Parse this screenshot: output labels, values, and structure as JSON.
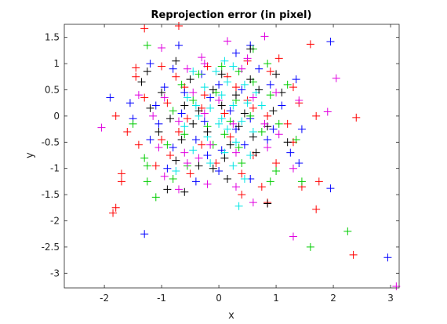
{
  "chart_data": {
    "type": "scatter",
    "title": "Reprojection error (in pixel)",
    "xlabel": "x",
    "ylabel": "y",
    "xlim": [
      -2.7,
      3.15
    ],
    "ylim": [
      -3.28,
      1.75
    ],
    "xticks": [
      "-2",
      "-1",
      "0",
      "1",
      "2",
      "3"
    ],
    "xtick_values": [
      -2,
      -1,
      0,
      1,
      2,
      3
    ],
    "yticks": [
      "1.5",
      "1",
      "0.5",
      "0",
      "-0.5",
      "-1",
      "-1.5",
      "-2",
      "-2.5",
      "-3"
    ],
    "ytick_values": [
      1.5,
      1,
      0.5,
      0,
      -0.5,
      -1,
      -1.5,
      -2,
      -2.5,
      -3
    ],
    "grid": false,
    "marker": "+",
    "series": [
      {
        "color": "#ff0000",
        "points": [
          [
            -1.3,
            1.67
          ],
          [
            -0.7,
            1.72
          ],
          [
            1.6,
            1.37
          ],
          [
            -1.8,
            0.0
          ],
          [
            -1.6,
            -0.3
          ],
          [
            -1.7,
            -1.1
          ],
          [
            -1.7,
            -1.25
          ],
          [
            -1.8,
            -1.75
          ],
          [
            -1.85,
            -1.85
          ],
          [
            -1.45,
            0.92
          ],
          [
            -1.45,
            0.75
          ],
          [
            -1.0,
            0.95
          ],
          [
            -0.75,
            0.75
          ],
          [
            -0.2,
            0.95
          ],
          [
            0.15,
            0.75
          ],
          [
            0.5,
            1.05
          ],
          [
            0.9,
            0.85
          ],
          [
            1.3,
            0.55
          ],
          [
            1.4,
            0.25
          ],
          [
            -1.3,
            0.35
          ],
          [
            -0.9,
            0.25
          ],
          [
            -0.6,
            0.55
          ],
          [
            -0.3,
            0.15
          ],
          [
            0.1,
            0.05
          ],
          [
            0.5,
            0.3
          ],
          [
            0.85,
            0.0
          ],
          [
            1.2,
            -0.15
          ],
          [
            1.7,
            0.0
          ],
          [
            2.4,
            -0.03
          ],
          [
            -1.4,
            -0.55
          ],
          [
            -1.0,
            -0.45
          ],
          [
            -0.7,
            -0.3
          ],
          [
            -0.3,
            -0.55
          ],
          [
            0.2,
            -0.4
          ],
          [
            0.6,
            -0.75
          ],
          [
            1.0,
            -0.9
          ],
          [
            1.3,
            -0.5
          ],
          [
            -1.1,
            -0.95
          ],
          [
            -0.5,
            -1.1
          ],
          [
            -0.05,
            -0.9
          ],
          [
            0.4,
            -1.1
          ],
          [
            0.75,
            -1.35
          ],
          [
            1.45,
            -1.35
          ],
          [
            1.75,
            -1.25
          ],
          [
            1.7,
            -1.78
          ],
          [
            0.4,
            -1.5
          ],
          [
            0.85,
            -1.65
          ],
          [
            2.35,
            -2.65
          ],
          [
            1.05,
            1.1
          ],
          [
            -0.25,
            0.4
          ],
          [
            0.3,
            0.55
          ],
          [
            -0.55,
            -0.05
          ],
          [
            0.6,
            0.15
          ],
          [
            -0.85,
            -0.75
          ]
        ]
      },
      {
        "color": "#0000ff",
        "points": [
          [
            -0.7,
            1.35
          ],
          [
            0.55,
            1.35
          ],
          [
            1.95,
            1.42
          ],
          [
            -1.2,
            1.0
          ],
          [
            -0.8,
            0.9
          ],
          [
            0.3,
            1.2
          ],
          [
            -1.9,
            0.35
          ],
          [
            -1.55,
            0.25
          ],
          [
            -1.1,
            0.2
          ],
          [
            -0.6,
            0.45
          ],
          [
            -0.15,
            0.35
          ],
          [
            0.4,
            0.5
          ],
          [
            0.9,
            0.6
          ],
          [
            1.35,
            0.7
          ],
          [
            -1.5,
            -0.05
          ],
          [
            -1.05,
            -0.15
          ],
          [
            -0.65,
            0.05
          ],
          [
            -0.25,
            -0.1
          ],
          [
            0.2,
            0.1
          ],
          [
            0.55,
            -0.05
          ],
          [
            0.95,
            -0.25
          ],
          [
            1.45,
            -0.25
          ],
          [
            -1.2,
            -0.45
          ],
          [
            -0.8,
            -0.6
          ],
          [
            -0.4,
            -0.45
          ],
          [
            0.05,
            -0.65
          ],
          [
            0.45,
            -0.55
          ],
          [
            0.85,
            -0.45
          ],
          [
            1.25,
            -0.7
          ],
          [
            1.4,
            -0.9
          ],
          [
            -0.9,
            -1.0
          ],
          [
            -0.4,
            -1.25
          ],
          [
            0.0,
            -1.05
          ],
          [
            0.55,
            -1.2
          ],
          [
            1.95,
            -1.38
          ],
          [
            -1.3,
            -2.25
          ],
          [
            2.95,
            -2.7
          ],
          [
            0.0,
            0.6
          ],
          [
            -0.3,
            0.8
          ],
          [
            0.7,
            0.9
          ],
          [
            -0.2,
            -0.75
          ],
          [
            0.3,
            -0.25
          ],
          [
            1.1,
            0.2
          ],
          [
            -0.95,
            0.55
          ]
        ]
      },
      {
        "color": "#00cc00",
        "points": [
          [
            -1.25,
            1.35
          ],
          [
            0.6,
            1.28
          ],
          [
            0.85,
            1.0
          ],
          [
            -1.5,
            -0.15
          ],
          [
            -1.3,
            -0.8
          ],
          [
            -1.25,
            -0.95
          ],
          [
            -1.25,
            -1.25
          ],
          [
            -1.1,
            -1.55
          ],
          [
            -0.8,
            -1.2
          ],
          [
            -0.55,
            -0.95
          ],
          [
            -0.9,
            -0.55
          ],
          [
            -0.6,
            -0.35
          ],
          [
            -0.2,
            -0.2
          ],
          [
            0.1,
            -0.35
          ],
          [
            0.35,
            -0.6
          ],
          [
            0.75,
            -0.3
          ],
          [
            1.05,
            -0.15
          ],
          [
            1.35,
            -0.45
          ],
          [
            -0.8,
            0.1
          ],
          [
            -0.45,
            0.3
          ],
          [
            -0.05,
            0.45
          ],
          [
            0.3,
            0.3
          ],
          [
            0.6,
            0.65
          ],
          [
            0.9,
            0.4
          ],
          [
            1.2,
            0.6
          ],
          [
            -0.35,
            0.8
          ],
          [
            0.05,
            0.95
          ],
          [
            0.35,
            0.85
          ],
          [
            0.9,
            -1.25
          ],
          [
            1.45,
            -1.25
          ],
          [
            1.6,
            -2.5
          ],
          [
            2.25,
            -2.2
          ],
          [
            0.4,
            -0.9
          ],
          [
            -0.1,
            -0.55
          ],
          [
            0.55,
            0.0
          ],
          [
            -0.65,
            0.6
          ],
          [
            0.2,
            -0.1
          ],
          [
            1.0,
            -1.05
          ]
        ]
      },
      {
        "color": "#00e5e5",
        "points": [
          [
            0.1,
            1.05
          ],
          [
            0.25,
            0.95
          ],
          [
            -0.45,
            0.85
          ],
          [
            0.15,
            0.65
          ],
          [
            -0.25,
            0.55
          ],
          [
            0.45,
            0.6
          ],
          [
            0.05,
            0.4
          ],
          [
            -0.55,
            0.35
          ],
          [
            0.5,
            0.25
          ],
          [
            -0.15,
            0.15
          ],
          [
            0.25,
            0.2
          ],
          [
            0.75,
            0.2
          ],
          [
            -0.35,
            0.0
          ],
          [
            0.05,
            -0.05
          ],
          [
            0.4,
            -0.1
          ],
          [
            -0.6,
            -0.2
          ],
          [
            0.15,
            -0.25
          ],
          [
            0.6,
            -0.3
          ],
          [
            -0.2,
            -0.4
          ],
          [
            0.3,
            -0.5
          ],
          [
            0.1,
            -0.7
          ],
          [
            -0.45,
            -0.65
          ],
          [
            0.55,
            -0.75
          ],
          [
            -0.15,
            -0.9
          ],
          [
            0.25,
            -0.95
          ],
          [
            -0.75,
            -1.05
          ],
          [
            0.45,
            -1.2
          ],
          [
            0.35,
            -1.72
          ],
          [
            -0.05,
            0.85
          ],
          [
            0.65,
            0.45
          ],
          [
            -0.4,
            0.2
          ],
          [
            0.0,
            -0.15
          ]
        ]
      },
      {
        "color": "#000000",
        "points": [
          [
            0.55,
            1.28
          ],
          [
            -0.75,
            1.05
          ],
          [
            -1.25,
            0.85
          ],
          [
            -0.5,
            0.7
          ],
          [
            0.05,
            0.8
          ],
          [
            0.55,
            0.7
          ],
          [
            1.0,
            0.8
          ],
          [
            -1.0,
            0.45
          ],
          [
            -0.6,
            0.2
          ],
          [
            -0.1,
            0.5
          ],
          [
            0.3,
            0.4
          ],
          [
            0.7,
            0.5
          ],
          [
            1.1,
            0.45
          ],
          [
            -1.2,
            0.15
          ],
          [
            -0.85,
            -0.05
          ],
          [
            -0.35,
            0.1
          ],
          [
            0.05,
            0.2
          ],
          [
            0.45,
            0.05
          ],
          [
            0.95,
            0.1
          ],
          [
            -1.05,
            -0.3
          ],
          [
            -0.65,
            -0.45
          ],
          [
            -0.2,
            -0.3
          ],
          [
            0.2,
            -0.55
          ],
          [
            0.6,
            -0.4
          ],
          [
            1.2,
            -0.5
          ],
          [
            -0.75,
            -0.85
          ],
          [
            -0.35,
            -0.95
          ],
          [
            0.1,
            -0.8
          ],
          [
            0.65,
            -0.7
          ],
          [
            -0.9,
            -1.4
          ],
          [
            -0.6,
            -1.45
          ],
          [
            -0.1,
            -1.0
          ],
          [
            0.15,
            -1.2
          ],
          [
            0.85,
            -1.67
          ],
          [
            -1.35,
            0.65
          ],
          [
            -0.45,
            -0.15
          ],
          [
            0.35,
            -0.2
          ],
          [
            0.85,
            -0.2
          ]
        ]
      },
      {
        "color": "#e000e0",
        "points": [
          [
            0.15,
            1.43
          ],
          [
            0.8,
            1.52
          ],
          [
            -1.0,
            1.3
          ],
          [
            -0.3,
            1.12
          ],
          [
            0.5,
            1.1
          ],
          [
            -0.25,
            1.0
          ],
          [
            2.05,
            0.72
          ],
          [
            -1.4,
            0.4
          ],
          [
            -0.95,
            0.35
          ],
          [
            -0.45,
            0.45
          ],
          [
            0.0,
            0.3
          ],
          [
            0.6,
            0.35
          ],
          [
            1.0,
            0.45
          ],
          [
            1.4,
            0.3
          ],
          [
            1.9,
            0.08
          ],
          [
            -2.05,
            -0.22
          ],
          [
            -1.15,
            0.0
          ],
          [
            -0.7,
            -0.1
          ],
          [
            -0.25,
            0.05
          ],
          [
            0.25,
            -0.15
          ],
          [
            0.8,
            -0.15
          ],
          [
            -1.05,
            -0.6
          ],
          [
            -0.6,
            -0.7
          ],
          [
            -0.15,
            -0.55
          ],
          [
            0.3,
            -0.7
          ],
          [
            0.85,
            -0.6
          ],
          [
            -0.95,
            -1.15
          ],
          [
            -0.55,
            -0.9
          ],
          [
            -0.2,
            -1.3
          ],
          [
            0.3,
            -1.35
          ],
          [
            0.6,
            -1.65
          ],
          [
            1.3,
            -1.0
          ],
          [
            -0.7,
            -1.4
          ],
          [
            1.3,
            -2.3
          ],
          [
            3.1,
            -3.25
          ],
          [
            -0.55,
            0.9
          ],
          [
            0.4,
            0.9
          ],
          [
            -0.35,
            -0.8
          ],
          [
            1.05,
            -0.35
          ]
        ]
      }
    ]
  }
}
